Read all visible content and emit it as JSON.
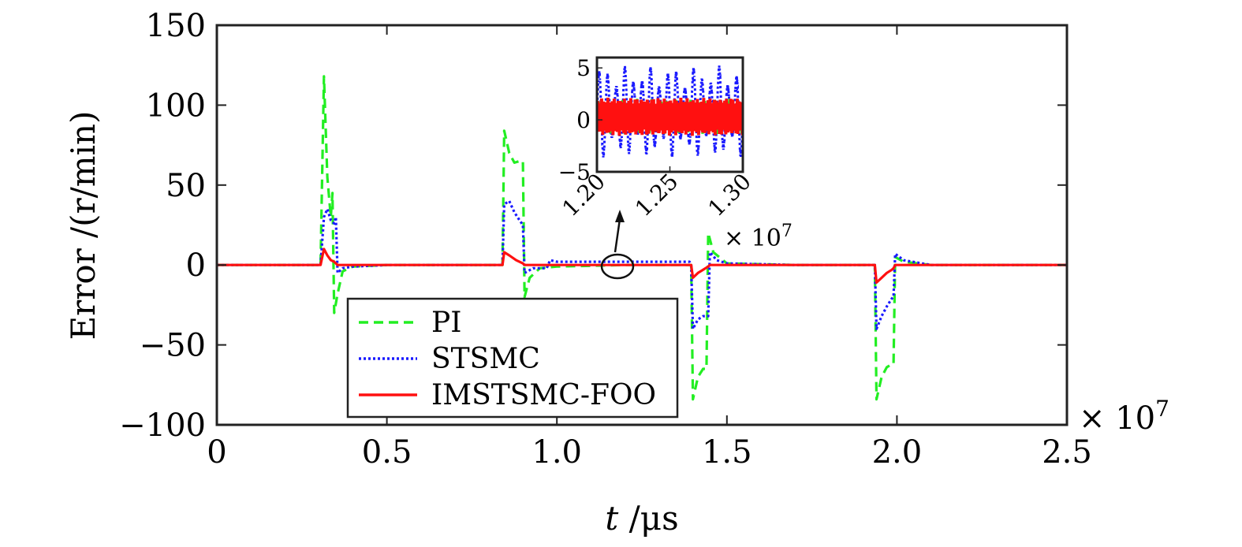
{
  "chart_data": [
    {
      "type": "line",
      "xlabel_italic": "t",
      "xlabel_unit": " /μs",
      "ylabel": "Error /(r/min)",
      "x_multiplier": "× 10",
      "x_multiplier_exp": "7",
      "xlim": [
        0,
        2.5
      ],
      "ylim": [
        -100,
        150
      ],
      "x_ticks": [
        0,
        0.5,
        1.0,
        1.5,
        2.0,
        2.5
      ],
      "x_tick_labels": [
        "0",
        "0.5",
        "1.0",
        "1.5",
        "2.0",
        "2.5"
      ],
      "y_ticks": [
        150,
        100,
        50,
        0,
        -50,
        -100
      ],
      "y_tick_labels": [
        "150",
        "100",
        "50",
        "0",
        "−50",
        "−100"
      ],
      "grid": false,
      "legend_position": "bottom-left",
      "series": [
        {
          "name": "PI",
          "color": "#22ee22",
          "style": "dashed",
          "points": [
            [
              0,
              0
            ],
            [
              0.3,
              0
            ],
            [
              0.305,
              0
            ],
            [
              0.315,
              118
            ],
            [
              0.325,
              55
            ],
            [
              0.335,
              30
            ],
            [
              0.34,
              45
            ],
            [
              0.345,
              -30
            ],
            [
              0.355,
              -18
            ],
            [
              0.37,
              -4
            ],
            [
              0.4,
              -1
            ],
            [
              0.5,
              0
            ],
            [
              0.6,
              0
            ],
            [
              0.7,
              0
            ],
            [
              0.83,
              0
            ],
            [
              0.84,
              0
            ],
            [
              0.845,
              84
            ],
            [
              0.86,
              70
            ],
            [
              0.875,
              64
            ],
            [
              0.89,
              65
            ],
            [
              0.9,
              65
            ],
            [
              0.905,
              -20
            ],
            [
              0.92,
              -8
            ],
            [
              0.95,
              -2
            ],
            [
              1.0,
              -1
            ],
            [
              1.2,
              0
            ],
            [
              1.39,
              0
            ],
            [
              1.395,
              0
            ],
            [
              1.4,
              -84
            ],
            [
              1.415,
              -70
            ],
            [
              1.43,
              -65
            ],
            [
              1.44,
              -65
            ],
            [
              1.445,
              20
            ],
            [
              1.46,
              8
            ],
            [
              1.5,
              1
            ],
            [
              1.7,
              0
            ],
            [
              1.93,
              0
            ],
            [
              1.935,
              0
            ],
            [
              1.94,
              -84
            ],
            [
              1.955,
              -70
            ],
            [
              1.97,
              -64
            ],
            [
              1.985,
              -62
            ],
            [
              1.99,
              -62
            ],
            [
              1.995,
              5
            ],
            [
              2.02,
              2
            ],
            [
              2.1,
              0
            ],
            [
              2.5,
              0
            ]
          ]
        },
        {
          "name": "STSMC",
          "color": "#1a1aff",
          "style": "dotted",
          "points": [
            [
              0,
              0
            ],
            [
              0.3,
              0
            ],
            [
              0.305,
              0
            ],
            [
              0.315,
              30
            ],
            [
              0.325,
              35
            ],
            [
              0.335,
              28
            ],
            [
              0.345,
              26
            ],
            [
              0.35,
              30
            ],
            [
              0.355,
              -5
            ],
            [
              0.37,
              -2
            ],
            [
              0.4,
              -1
            ],
            [
              0.5,
              0
            ],
            [
              0.83,
              0
            ],
            [
              0.84,
              0
            ],
            [
              0.845,
              38
            ],
            [
              0.86,
              40
            ],
            [
              0.875,
              33
            ],
            [
              0.89,
              28
            ],
            [
              0.9,
              25
            ],
            [
              0.905,
              -5
            ],
            [
              0.93,
              -2
            ],
            [
              0.97,
              -2
            ],
            [
              0.98,
              3
            ],
            [
              1.0,
              2
            ],
            [
              1.1,
              2
            ],
            [
              1.2,
              2
            ],
            [
              1.3,
              2
            ],
            [
              1.39,
              2
            ],
            [
              1.395,
              0
            ],
            [
              1.4,
              -40
            ],
            [
              1.415,
              -34
            ],
            [
              1.43,
              -32
            ],
            [
              1.445,
              -32
            ],
            [
              1.45,
              8
            ],
            [
              1.47,
              3
            ],
            [
              1.5,
              1
            ],
            [
              1.7,
              0
            ],
            [
              1.93,
              0
            ],
            [
              1.935,
              0
            ],
            [
              1.94,
              -40
            ],
            [
              1.955,
              -32
            ],
            [
              1.97,
              -26
            ],
            [
              1.985,
              -21
            ],
            [
              1.99,
              -20
            ],
            [
              1.995,
              7
            ],
            [
              2.02,
              3
            ],
            [
              2.1,
              0
            ],
            [
              2.5,
              0
            ]
          ]
        },
        {
          "name": "IMSTSMC-FOO",
          "color": "#ff1010",
          "style": "solid",
          "points": [
            [
              0,
              0
            ],
            [
              0.3,
              0
            ],
            [
              0.305,
              0
            ],
            [
              0.315,
              10
            ],
            [
              0.325,
              6
            ],
            [
              0.335,
              3
            ],
            [
              0.345,
              2
            ],
            [
              0.355,
              0
            ],
            [
              0.4,
              0
            ],
            [
              0.83,
              0
            ],
            [
              0.84,
              0
            ],
            [
              0.845,
              8
            ],
            [
              0.86,
              6
            ],
            [
              0.88,
              3
            ],
            [
              0.9,
              1
            ],
            [
              0.905,
              0
            ],
            [
              1.39,
              0
            ],
            [
              1.395,
              0
            ],
            [
              1.4,
              -8
            ],
            [
              1.415,
              -5
            ],
            [
              1.43,
              -3
            ],
            [
              1.445,
              -1
            ],
            [
              1.45,
              0
            ],
            [
              1.93,
              0
            ],
            [
              1.935,
              0
            ],
            [
              1.94,
              -11
            ],
            [
              1.955,
              -8
            ],
            [
              1.97,
              -5
            ],
            [
              1.985,
              -3
            ],
            [
              1.99,
              -2
            ],
            [
              1.995,
              0
            ],
            [
              2.5,
              0
            ]
          ]
        }
      ]
    },
    {
      "type": "line",
      "inset": true,
      "xlim": [
        1.2,
        1.3
      ],
      "ylim": [
        -5,
        6
      ],
      "x_ticks": [
        1.2,
        1.25,
        1.3
      ],
      "x_tick_labels": [
        "1.20",
        "1.25",
        "1.30"
      ],
      "x_multiplier": "× 10",
      "x_multiplier_exp": "7",
      "y_ticks": [
        5,
        0,
        -5
      ],
      "y_tick_labels": [
        "5",
        "0",
        "−5"
      ],
      "grid": false,
      "series": [
        {
          "name": "STSMC",
          "color": "#1a1aff",
          "style": "dotted",
          "oscillation_amplitude": 4.2,
          "cycles": 17
        },
        {
          "name": "PI",
          "color": "#22ee22",
          "style": "dashed",
          "oscillation_amplitude": 1.5,
          "cycles": 30
        },
        {
          "name": "IMSTSMC-FOO",
          "color": "#ff1010",
          "style": "solid",
          "oscillation_amplitude": 1.0,
          "cycles": 70
        }
      ]
    }
  ]
}
